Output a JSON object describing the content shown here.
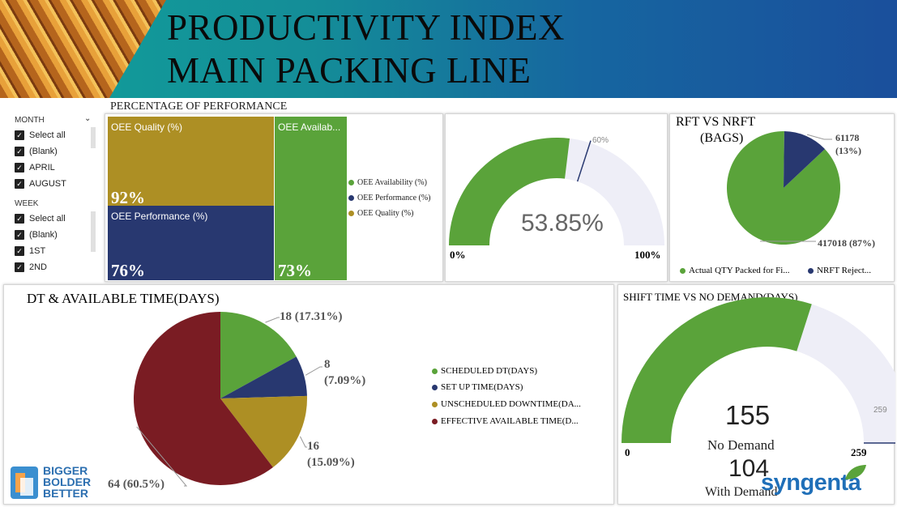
{
  "header": {
    "title_line1": "PRODUCTIVITY INDEX",
    "title_line2": "MAIN PACKING LINE"
  },
  "colors": {
    "green": "#5aa33a",
    "navy": "#283870",
    "gold": "#ad8f24",
    "maroon": "#7a1c23",
    "track": "#eeeef7"
  },
  "slicers": {
    "month": {
      "label": "MONTH",
      "items": [
        "Select all",
        "(Blank)",
        "APRIL",
        "AUGUST"
      ]
    },
    "week": {
      "label": "WEEK",
      "items": [
        "Select all",
        "(Blank)",
        "1ST",
        "2ND"
      ]
    }
  },
  "performance": {
    "title": "PERCENTAGE OF PERFORMANCE",
    "tiles": [
      {
        "label": "OEE Quality (%)",
        "value": "92%"
      },
      {
        "label": "OEE Performance (%)",
        "value": "76%"
      },
      {
        "label": "OEE Availab...",
        "value": "73%"
      }
    ],
    "legend": [
      "OEE Availability (%)",
      "OEE Performance (%)",
      "OEE Quality (%)"
    ]
  },
  "gauge1": {
    "value_text": "53.85%",
    "min": "0%",
    "max": "100%",
    "target": "60%",
    "value": 53.85,
    "target_value": 60
  },
  "rft": {
    "title_line1": "RFT VS NRFT",
    "title_line2": "(BAGS)",
    "slices": [
      {
        "value": 417018,
        "label1": "417018 (87%)"
      },
      {
        "value": 61178,
        "label1": "61178",
        "label2": "(13%)"
      }
    ],
    "legend": [
      "Actual QTY Packed for Fi...",
      "NRFT Reject..."
    ]
  },
  "dt": {
    "title": "DT & AVAILABLE TIME(DAYS)",
    "slices": [
      {
        "value": 18,
        "label1": "18 (17.31%)"
      },
      {
        "value": 8,
        "label1": "8",
        "label2": "(7.09%)"
      },
      {
        "value": 16,
        "label1": "16",
        "label2": "(15.09%)"
      },
      {
        "value": 64,
        "label1": "64 (60.5%)"
      }
    ],
    "legend": [
      "SCHEDULED DT(DAYS)",
      "SET UP TIME(DAYS)",
      "UNSCHEDULED DOWNTIME(DA...",
      "EFFECTIVE AVAILABLE TIME(D..."
    ]
  },
  "shift": {
    "title": "SHIFT TIME VS NO DEMAND(DAYS)",
    "value_text": "155",
    "value_caption": "No Demand",
    "second_text": "104",
    "second_caption": "With Demand",
    "min": "0",
    "max": "259",
    "target": "259",
    "value": 155,
    "max_value": 259
  },
  "logos": {
    "bbb_line1": "BIGGER",
    "bbb_line2": "BOLDER",
    "bbb_line3": "BETTER",
    "syngenta": "syngenta"
  },
  "chart_data": [
    {
      "type": "bar",
      "title": "PERCENTAGE OF PERFORMANCE",
      "categories": [
        "OEE Quality (%)",
        "OEE Performance (%)",
        "OEE Availability (%)"
      ],
      "values": [
        92,
        76,
        73
      ]
    },
    {
      "type": "pie",
      "title": "RFT VS NRFT (BAGS)",
      "categories": [
        "Actual QTY Packed for Fi...",
        "NRFT Reject..."
      ],
      "values": [
        417018,
        61178
      ]
    },
    {
      "type": "pie",
      "title": "DT & AVAILABLE TIME(DAYS)",
      "categories": [
        "SCHEDULED DT(DAYS)",
        "SET UP TIME(DAYS)",
        "UNSCHEDULED DOWNTIME(DA...",
        "EFFECTIVE AVAILABLE TIME(D..."
      ],
      "values": [
        18,
        8,
        16,
        64
      ]
    }
  ]
}
